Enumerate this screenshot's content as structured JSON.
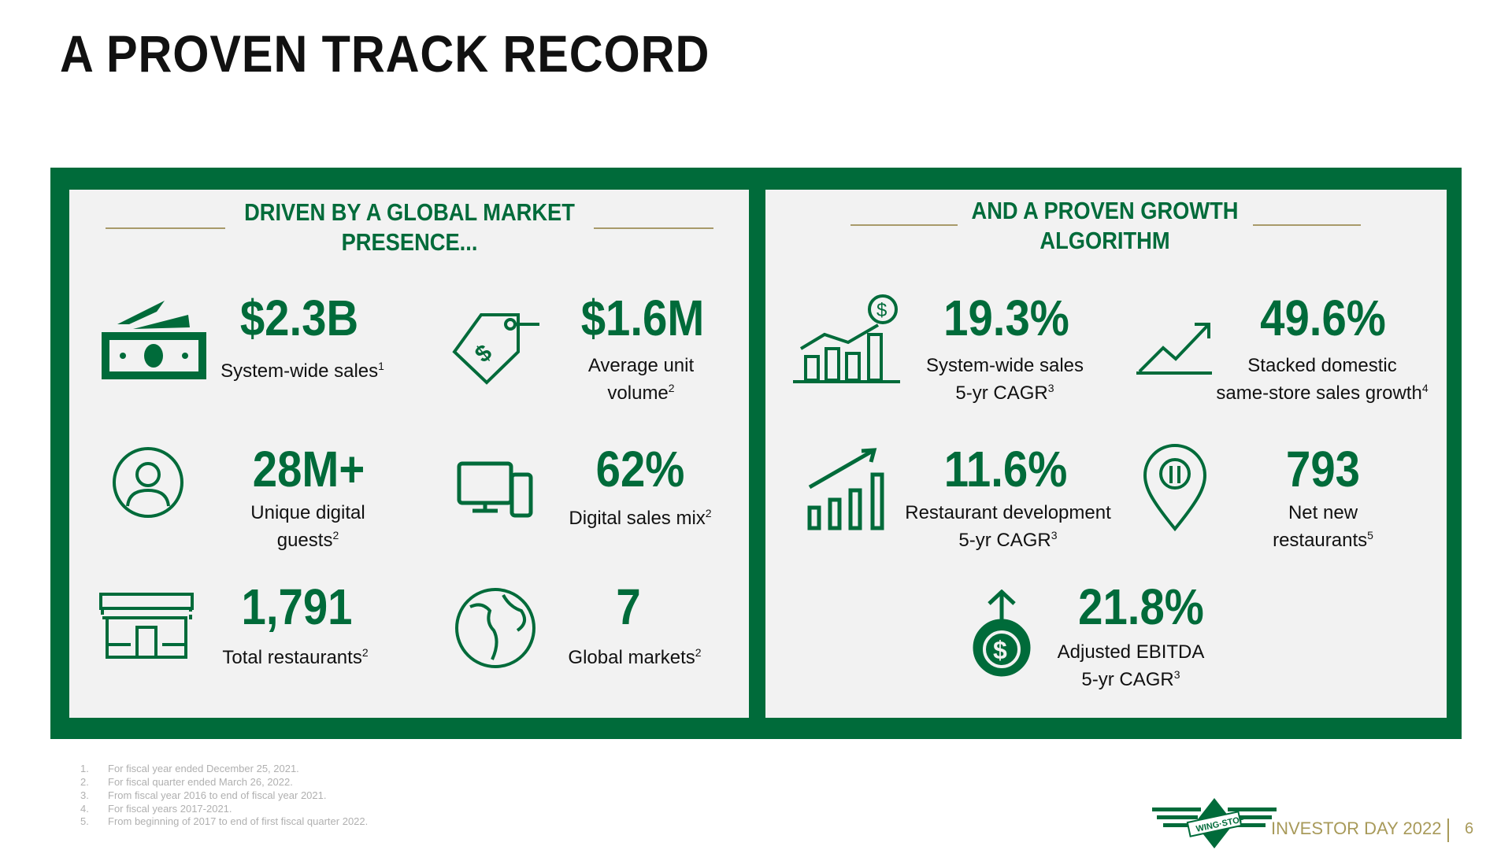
{
  "title": "A PROVEN TRACK RECORD",
  "left": {
    "heading_1": "DRIVEN BY A GLOBAL MARKET",
    "heading_2": "PRESENCE...",
    "stats": [
      {
        "value": "$2.3B",
        "label": "System-wide sales",
        "sup": "1",
        "icon": "money-icon"
      },
      {
        "value": "$1.6M",
        "label": "Average unit",
        "label2": "volume",
        "sup": "2",
        "icon": "price-tag-icon"
      },
      {
        "value": "28M+",
        "label": "Unique digital",
        "label2": "guests",
        "sup": "2",
        "icon": "user-icon"
      },
      {
        "value": "62%",
        "label": "Digital sales mix",
        "sup": "2",
        "icon": "devices-icon"
      },
      {
        "value": "1,791",
        "label": "Total restaurants",
        "sup": "2",
        "icon": "store-icon"
      },
      {
        "value": "7",
        "label": "Global markets",
        "sup": "2",
        "icon": "globe-icon"
      }
    ]
  },
  "right": {
    "heading_1": "AND A PROVEN GROWTH",
    "heading_2": "ALGORITHM",
    "stats": [
      {
        "value": "19.3%",
        "label": "System-wide sales",
        "label2": "5-yr CAGR",
        "sup": "3",
        "icon": "growth-chart-icon"
      },
      {
        "value": "49.6%",
        "label": "Stacked domestic",
        "label2": "same-store sales growth",
        "sup": "4",
        "icon": "trend-up-icon"
      },
      {
        "value": "11.6%",
        "label": "Restaurant development",
        "label2": "5-yr CAGR",
        "sup": "3",
        "icon": "bar-chart-icon"
      },
      {
        "value": "793",
        "label": "Net new",
        "label2": "restaurants",
        "sup": "5",
        "icon": "location-pin-icon"
      },
      {
        "value": "21.8%",
        "label": "Adjusted EBITDA",
        "label2": "5-yr CAGR",
        "sup": "3",
        "icon": "money-bag-icon"
      }
    ]
  },
  "footnotes": [
    {
      "n": "1.",
      "t": "For fiscal year ended December 25, 2021."
    },
    {
      "n": "2.",
      "t": "For fiscal quarter ended March 26, 2022."
    },
    {
      "n": "3.",
      "t": "From fiscal year 2016 to end of fiscal year 2021."
    },
    {
      "n": "4.",
      "t": "For fiscal years 2017-2021."
    },
    {
      "n": "5.",
      "t": "From beginning of 2017 to end of first fiscal quarter 2022."
    }
  ],
  "footer": {
    "logo_text": "WING STOP",
    "event": "INVESTOR DAY 2022",
    "page": "6"
  },
  "colors": {
    "brand_green": "#006B3A",
    "gold": "#A89A6A"
  }
}
